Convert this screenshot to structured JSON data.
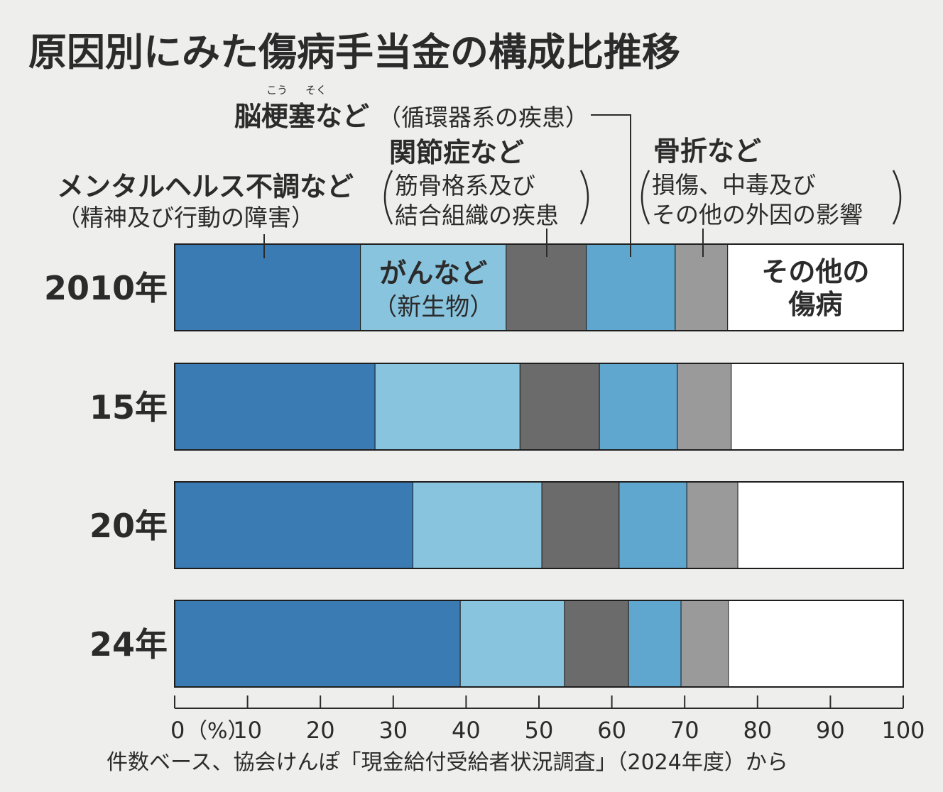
{
  "chart_data": {
    "type": "bar",
    "orientation": "horizontal",
    "stacked": true,
    "title": "原因別にみた傷病手当金の構成比推移",
    "categories": [
      "2010年",
      "15年",
      "20年",
      "24年"
    ],
    "series": [
      {
        "name": "メンタルヘルス不調など",
        "sub": "（精神及び行動の障害）",
        "color": "#3a7bb4",
        "values": [
          25.5,
          27.5,
          32.7,
          39.2
        ]
      },
      {
        "name": "がんなど",
        "sub": "（新生物）",
        "color": "#89c4de",
        "values": [
          20.0,
          19.9,
          17.7,
          14.3
        ]
      },
      {
        "name": "関節症など",
        "sub": "筋骨格系及び結合組織の疾患",
        "color": "#6b6b6b",
        "values": [
          11.0,
          10.9,
          10.6,
          8.8
        ]
      },
      {
        "name": "脳梗塞など",
        "ruby": "こう　そく",
        "sub": "（循環器系の疾患）",
        "color": "#5fa7cf",
        "values": [
          12.2,
          10.7,
          9.3,
          7.2
        ]
      },
      {
        "name": "骨折など",
        "sub": "損傷、中毒及びその他の外因の影響",
        "color": "#9a9a9a",
        "values": [
          7.2,
          7.4,
          7.0,
          6.5
        ]
      },
      {
        "name": "その他の傷病",
        "color": "#ffffff",
        "values": [
          24.1,
          23.6,
          22.7,
          24.0
        ]
      }
    ],
    "xlim": [
      0,
      100
    ],
    "xticks": [
      "0",
      "10",
      "20",
      "30",
      "40",
      "50",
      "60",
      "70",
      "80",
      "90",
      "100"
    ],
    "xunit": "（%）",
    "labels": {
      "mental": [
        "メンタルヘルス不調など",
        "（精神及び行動の障害）"
      ],
      "cancer": [
        "がんなど",
        "（新生物）"
      ],
      "joint": [
        "関節症など",
        "筋骨格系及び",
        "結合組織の疾患"
      ],
      "stroke": [
        "脳梗塞など",
        "（循環器系の疾患）",
        "こう",
        "そく"
      ],
      "fracture": [
        "骨折など",
        "損傷、中毒及び",
        "その他の外因の影響"
      ],
      "other": [
        "その他の",
        "傷病"
      ]
    },
    "source": "件数ベース、協会けんぽ「現金給付受給者状況調査」（2024年度）から"
  }
}
